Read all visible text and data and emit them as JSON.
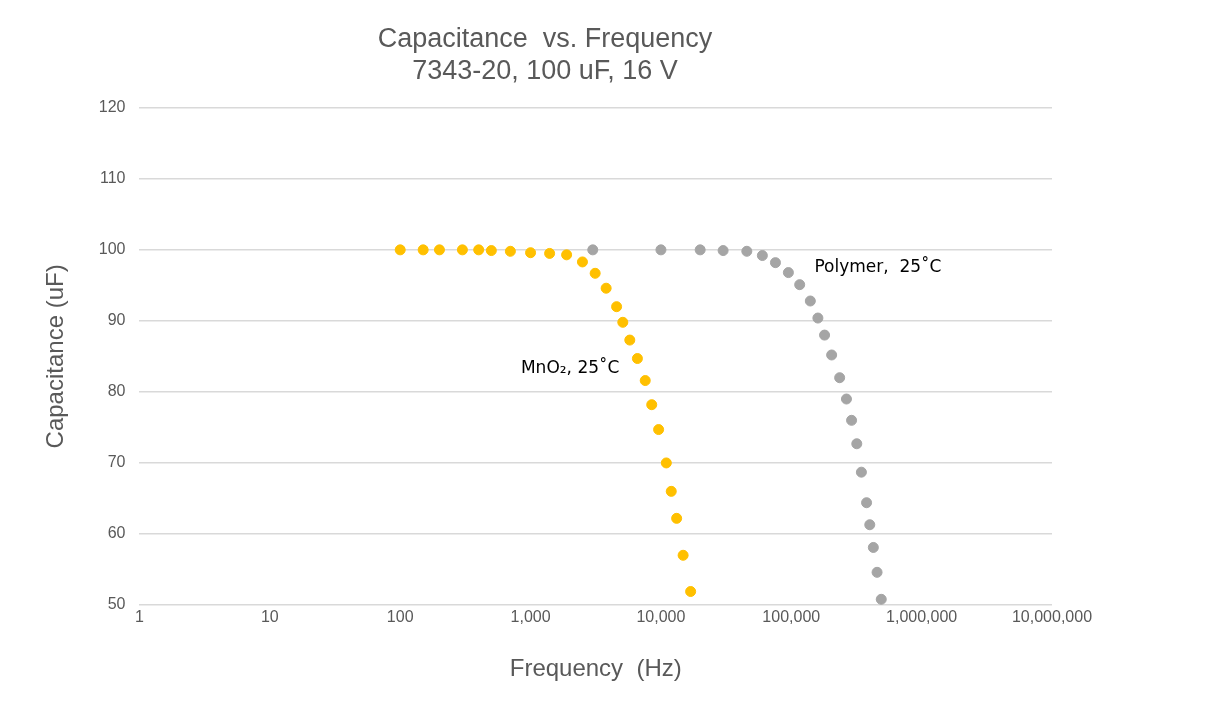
{
  "chart_data": {
    "type": "scatter",
    "title": "Capacitance  vs. Frequency",
    "subtitle": "7343-20, 100 uF, 16 V",
    "xlabel": "Frequency  (Hz)",
    "ylabel": "Capacitance (uF)",
    "log": "x",
    "grid": "y",
    "legend": false,
    "marker": "circle",
    "xlim": [
      1,
      10000000
    ],
    "xticks": [
      1,
      10,
      100,
      {
        "value": 1000,
        "label": "1,000"
      },
      {
        "value": 10000,
        "label": "10,000"
      },
      {
        "value": 100000,
        "label": "100,000"
      },
      {
        "value": 1000000,
        "label": "1,000,000"
      },
      {
        "value": 10000000,
        "label": "10,000,000"
      }
    ],
    "ylim": [
      50,
      120
    ],
    "yticks": [
      50,
      60,
      70,
      80,
      90,
      100,
      110,
      120
    ],
    "series": [
      {
        "name": "MnO₂, 25˚C",
        "color": "#ffc000",
        "x": [
          100,
          150,
          200,
          300,
          400,
          500,
          700,
          1000,
          1400,
          1890,
          2500,
          3130,
          3800,
          4570,
          5100,
          5770,
          6600,
          7580,
          8500,
          9600,
          11000,
          12000,
          13200,
          14800,
          16900
        ],
        "values": [
          100,
          100,
          100,
          100,
          100,
          99.9,
          99.8,
          99.6,
          99.5,
          99.3,
          98.3,
          96.7,
          94.6,
          92,
          89.8,
          87.3,
          84.7,
          81.6,
          78.2,
          74.7,
          70,
          66,
          62.2,
          57,
          51.9
        ]
      },
      {
        "name": "Polymer,  25˚C",
        "color": "#a5a5a5",
        "x": [
          3000,
          10000,
          20000,
          30000,
          45600,
          60000,
          75600,
          95000,
          116000,
          140000,
          160000,
          180000,
          204000,
          235000,
          265000,
          290000,
          318000,
          345000,
          378000,
          400000,
          426000,
          455000,
          490000
        ],
        "values": [
          100,
          100,
          100,
          99.9,
          99.8,
          99.2,
          98.2,
          96.8,
          95.1,
          92.8,
          90.4,
          88,
          85.2,
          82,
          79,
          76,
          72.7,
          68.7,
          64.4,
          61.3,
          58.1,
          54.6,
          50.8
        ]
      }
    ]
  }
}
